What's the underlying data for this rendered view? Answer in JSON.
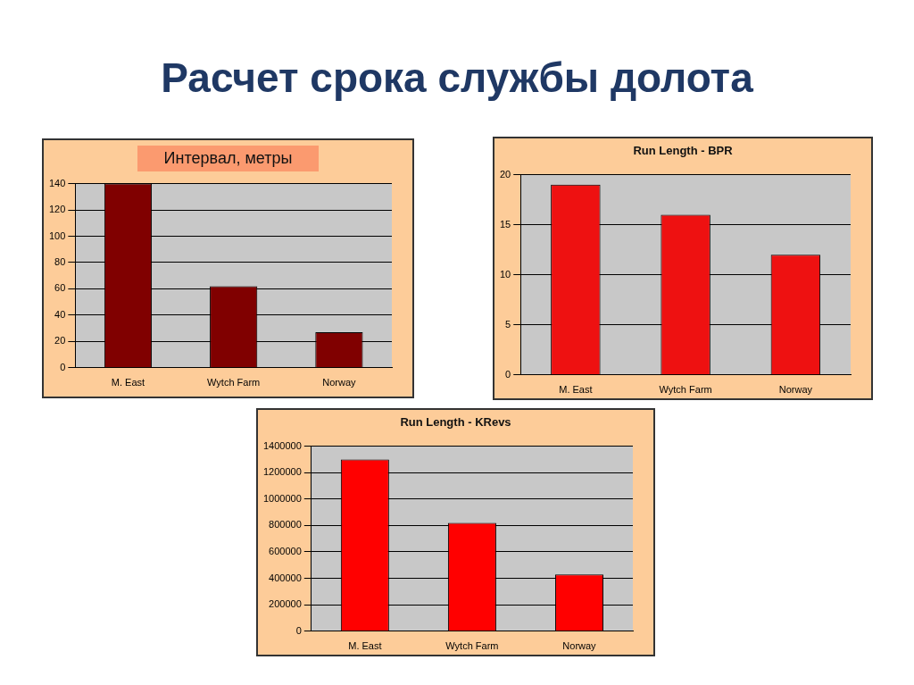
{
  "chart_data": [
    {
      "type": "bar",
      "title": "Интервал, метры",
      "annotations": [
        "Расчет срока службы долота"
      ],
      "categories": [
        "M. East",
        "Wytch Farm",
        "Norway"
      ],
      "values": [
        140,
        62,
        27
      ],
      "color": "#800000",
      "ylim": [
        0,
        140
      ],
      "yticks": [
        0,
        20,
        40,
        60,
        80,
        100,
        120,
        140
      ],
      "grid": "y"
    },
    {
      "type": "bar",
      "title": "Run Length - BPR",
      "categories": [
        "M. East",
        "Wytch Farm",
        "Norway"
      ],
      "values": [
        19,
        16,
        12
      ],
      "color": "#ee1111",
      "ylim": [
        0,
        20
      ],
      "yticks": [
        0,
        5,
        10,
        15,
        20
      ],
      "grid": "y"
    },
    {
      "type": "bar",
      "title": "Run Length - KRevs",
      "categories": [
        "M. East",
        "Wytch Farm",
        "Norway"
      ],
      "values": [
        1300000,
        820000,
        430000
      ],
      "color": "#ff0000",
      "ylim": [
        0,
        1400000
      ],
      "yticks": [
        0,
        200000,
        400000,
        600000,
        800000,
        1000000,
        1200000,
        1400000
      ],
      "grid": "y"
    }
  ]
}
